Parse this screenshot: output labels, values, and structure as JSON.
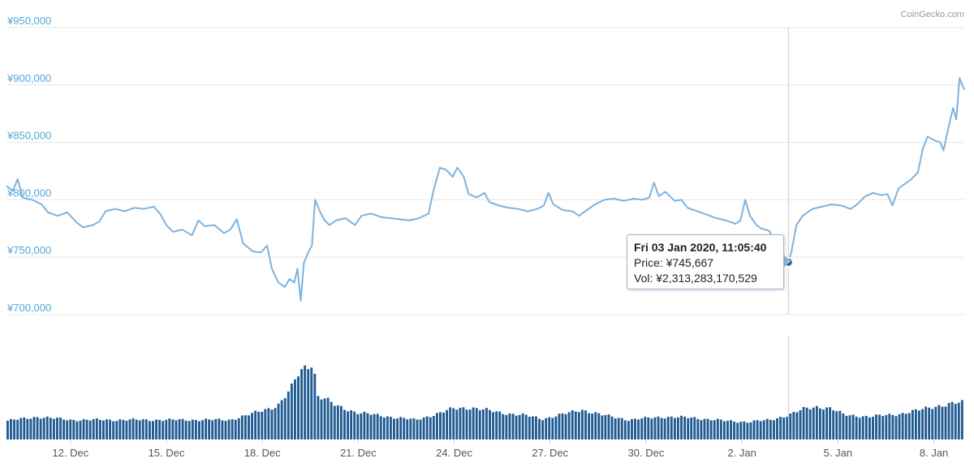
{
  "chart_data": {
    "type": "line",
    "credit": "CoinGecko.com",
    "y_ticks": [
      "¥700,000",
      "¥750,000",
      "¥800,000",
      "¥850,000",
      "¥900,000",
      "¥950,000"
    ],
    "y_tick_values": [
      700000,
      750000,
      800000,
      850000,
      900000,
      950000
    ],
    "ylim": [
      700000,
      950000
    ],
    "x_ticks": [
      {
        "label": "12. Dec",
        "day": 12
      },
      {
        "label": "15. Dec",
        "day": 15
      },
      {
        "label": "18. Dec",
        "day": 18
      },
      {
        "label": "21. Dec",
        "day": 21
      },
      {
        "label": "24. Dec",
        "day": 24
      },
      {
        "label": "27. Dec",
        "day": 27
      },
      {
        "label": "30. Dec",
        "day": 30
      },
      {
        "label": "2. Jan",
        "day": 33
      },
      {
        "label": "5. Jan",
        "day": 36
      },
      {
        "label": "8. Jan",
        "day": 39
      }
    ],
    "xlim_days": [
      10.0,
      39.95
    ],
    "price_series": {
      "name": "Price",
      "color": "#7db2df",
      "points": [
        [
          10.0,
          812000
        ],
        [
          10.2,
          808000
        ],
        [
          10.35,
          818000
        ],
        [
          10.5,
          802000
        ],
        [
          10.8,
          800000
        ],
        [
          11.1,
          796000
        ],
        [
          11.3,
          789000
        ],
        [
          11.6,
          786000
        ],
        [
          11.9,
          789000
        ],
        [
          12.2,
          780000
        ],
        [
          12.4,
          776000
        ],
        [
          12.7,
          778000
        ],
        [
          12.9,
          781000
        ],
        [
          13.1,
          790000
        ],
        [
          13.4,
          792000
        ],
        [
          13.7,
          790000
        ],
        [
          14.0,
          793000
        ],
        [
          14.3,
          792000
        ],
        [
          14.6,
          794000
        ],
        [
          14.8,
          788000
        ],
        [
          15.0,
          778000
        ],
        [
          15.2,
          772000
        ],
        [
          15.5,
          774000
        ],
        [
          15.8,
          769000
        ],
        [
          16.0,
          782000
        ],
        [
          16.2,
          777000
        ],
        [
          16.5,
          778000
        ],
        [
          16.8,
          771000
        ],
        [
          17.0,
          774000
        ],
        [
          17.2,
          783000
        ],
        [
          17.4,
          762000
        ],
        [
          17.7,
          755000
        ],
        [
          17.95,
          754000
        ],
        [
          18.15,
          760000
        ],
        [
          18.3,
          740000
        ],
        [
          18.5,
          728000
        ],
        [
          18.7,
          724000
        ],
        [
          18.85,
          731000
        ],
        [
          19.0,
          728000
        ],
        [
          19.1,
          740000
        ],
        [
          19.2,
          712000
        ],
        [
          19.3,
          745000
        ],
        [
          19.45,
          755000
        ],
        [
          19.55,
          760000
        ],
        [
          19.65,
          800000
        ],
        [
          19.8,
          790000
        ],
        [
          19.95,
          782000
        ],
        [
          20.1,
          778000
        ],
        [
          20.3,
          782000
        ],
        [
          20.6,
          784000
        ],
        [
          20.9,
          778000
        ],
        [
          21.1,
          786000
        ],
        [
          21.4,
          788000
        ],
        [
          21.7,
          785000
        ],
        [
          22.0,
          784000
        ],
        [
          22.3,
          783000
        ],
        [
          22.6,
          782000
        ],
        [
          22.9,
          784000
        ],
        [
          23.2,
          788000
        ],
        [
          23.35,
          808000
        ],
        [
          23.55,
          828000
        ],
        [
          23.75,
          826000
        ],
        [
          23.95,
          820000
        ],
        [
          24.1,
          828000
        ],
        [
          24.3,
          820000
        ],
        [
          24.45,
          805000
        ],
        [
          24.7,
          802000
        ],
        [
          24.95,
          806000
        ],
        [
          25.1,
          798000
        ],
        [
          25.4,
          795000
        ],
        [
          25.7,
          793000
        ],
        [
          26.0,
          792000
        ],
        [
          26.3,
          790000
        ],
        [
          26.6,
          792000
        ],
        [
          26.8,
          795000
        ],
        [
          26.95,
          806000
        ],
        [
          27.1,
          796000
        ],
        [
          27.4,
          791000
        ],
        [
          27.7,
          790000
        ],
        [
          27.9,
          786000
        ],
        [
          28.1,
          790000
        ],
        [
          28.4,
          796000
        ],
        [
          28.7,
          800000
        ],
        [
          29.0,
          801000
        ],
        [
          29.3,
          799000
        ],
        [
          29.6,
          801000
        ],
        [
          29.9,
          800000
        ],
        [
          30.1,
          802000
        ],
        [
          30.25,
          815000
        ],
        [
          30.4,
          803000
        ],
        [
          30.6,
          807000
        ],
        [
          30.9,
          799000
        ],
        [
          31.1,
          800000
        ],
        [
          31.3,
          793000
        ],
        [
          31.6,
          790000
        ],
        [
          31.9,
          787000
        ],
        [
          32.2,
          784000
        ],
        [
          32.5,
          782000
        ],
        [
          32.8,
          779000
        ],
        [
          32.95,
          782000
        ],
        [
          33.1,
          800000
        ],
        [
          33.25,
          786000
        ],
        [
          33.45,
          778000
        ],
        [
          33.6,
          775000
        ],
        [
          33.85,
          773000
        ],
        [
          34.0,
          764000
        ],
        [
          34.2,
          752000
        ],
        [
          34.35,
          748000
        ],
        [
          34.45,
          745667
        ],
        [
          34.55,
          755000
        ],
        [
          34.7,
          778000
        ],
        [
          34.9,
          786000
        ],
        [
          35.2,
          792000
        ],
        [
          35.5,
          794000
        ],
        [
          35.8,
          796000
        ],
        [
          36.1,
          795000
        ],
        [
          36.4,
          792000
        ],
        [
          36.6,
          796000
        ],
        [
          36.85,
          803000
        ],
        [
          37.1,
          806000
        ],
        [
          37.35,
          804000
        ],
        [
          37.55,
          805000
        ],
        [
          37.7,
          795000
        ],
        [
          37.9,
          810000
        ],
        [
          38.1,
          814000
        ],
        [
          38.3,
          818000
        ],
        [
          38.5,
          824000
        ],
        [
          38.65,
          844000
        ],
        [
          38.8,
          855000
        ],
        [
          39.0,
          852000
        ],
        [
          39.2,
          850000
        ],
        [
          39.3,
          843000
        ],
        [
          39.45,
          862000
        ],
        [
          39.6,
          880000
        ],
        [
          39.7,
          870000
        ],
        [
          39.8,
          906000
        ],
        [
          39.95,
          896000
        ]
      ]
    },
    "volume_series": {
      "name": "Vol",
      "color": "#1f5a92",
      "anchors": [
        [
          10.0,
          0.18
        ],
        [
          11.0,
          0.22
        ],
        [
          12.0,
          0.19
        ],
        [
          13.0,
          0.19
        ],
        [
          14.0,
          0.19
        ],
        [
          15.0,
          0.19
        ],
        [
          16.0,
          0.19
        ],
        [
          17.0,
          0.19
        ],
        [
          17.6,
          0.24
        ],
        [
          18.0,
          0.28
        ],
        [
          18.5,
          0.33
        ],
        [
          18.9,
          0.48
        ],
        [
          19.1,
          0.62
        ],
        [
          19.4,
          0.72
        ],
        [
          19.6,
          0.75
        ],
        [
          19.75,
          0.42
        ],
        [
          20.0,
          0.39
        ],
        [
          20.3,
          0.33
        ],
        [
          21.0,
          0.26
        ],
        [
          22.0,
          0.22
        ],
        [
          22.8,
          0.19
        ],
        [
          23.5,
          0.25
        ],
        [
          24.0,
          0.3
        ],
        [
          24.5,
          0.31
        ],
        [
          25.5,
          0.26
        ],
        [
          26.3,
          0.23
        ],
        [
          26.8,
          0.2
        ],
        [
          27.5,
          0.25
        ],
        [
          28.0,
          0.29
        ],
        [
          28.6,
          0.24
        ],
        [
          29.5,
          0.19
        ],
        [
          30.5,
          0.22
        ],
        [
          31.5,
          0.21
        ],
        [
          32.5,
          0.18
        ],
        [
          33.2,
          0.17
        ],
        [
          33.9,
          0.19
        ],
        [
          34.5,
          0.24
        ],
        [
          35.0,
          0.3
        ],
        [
          35.4,
          0.32
        ],
        [
          35.8,
          0.3
        ],
        [
          36.2,
          0.24
        ],
        [
          37.0,
          0.22
        ],
        [
          38.0,
          0.25
        ],
        [
          38.5,
          0.28
        ],
        [
          39.0,
          0.32
        ],
        [
          39.95,
          0.36
        ]
      ],
      "bar_count": 290
    },
    "crosshair_day": 34.45,
    "tooltip": {
      "title": "Fri 03 Jan 2020, 11:05:40",
      "price_label": "Price:",
      "price_value": "¥745,667",
      "vol_label": "Vol:",
      "vol_value": "¥2,313,283,170,529"
    },
    "colors": {
      "y_tick_text": "#4fa8d8",
      "grid": "#e6e6e6",
      "crosshair": "#c8c8c8",
      "point": "#1f5a92"
    }
  }
}
